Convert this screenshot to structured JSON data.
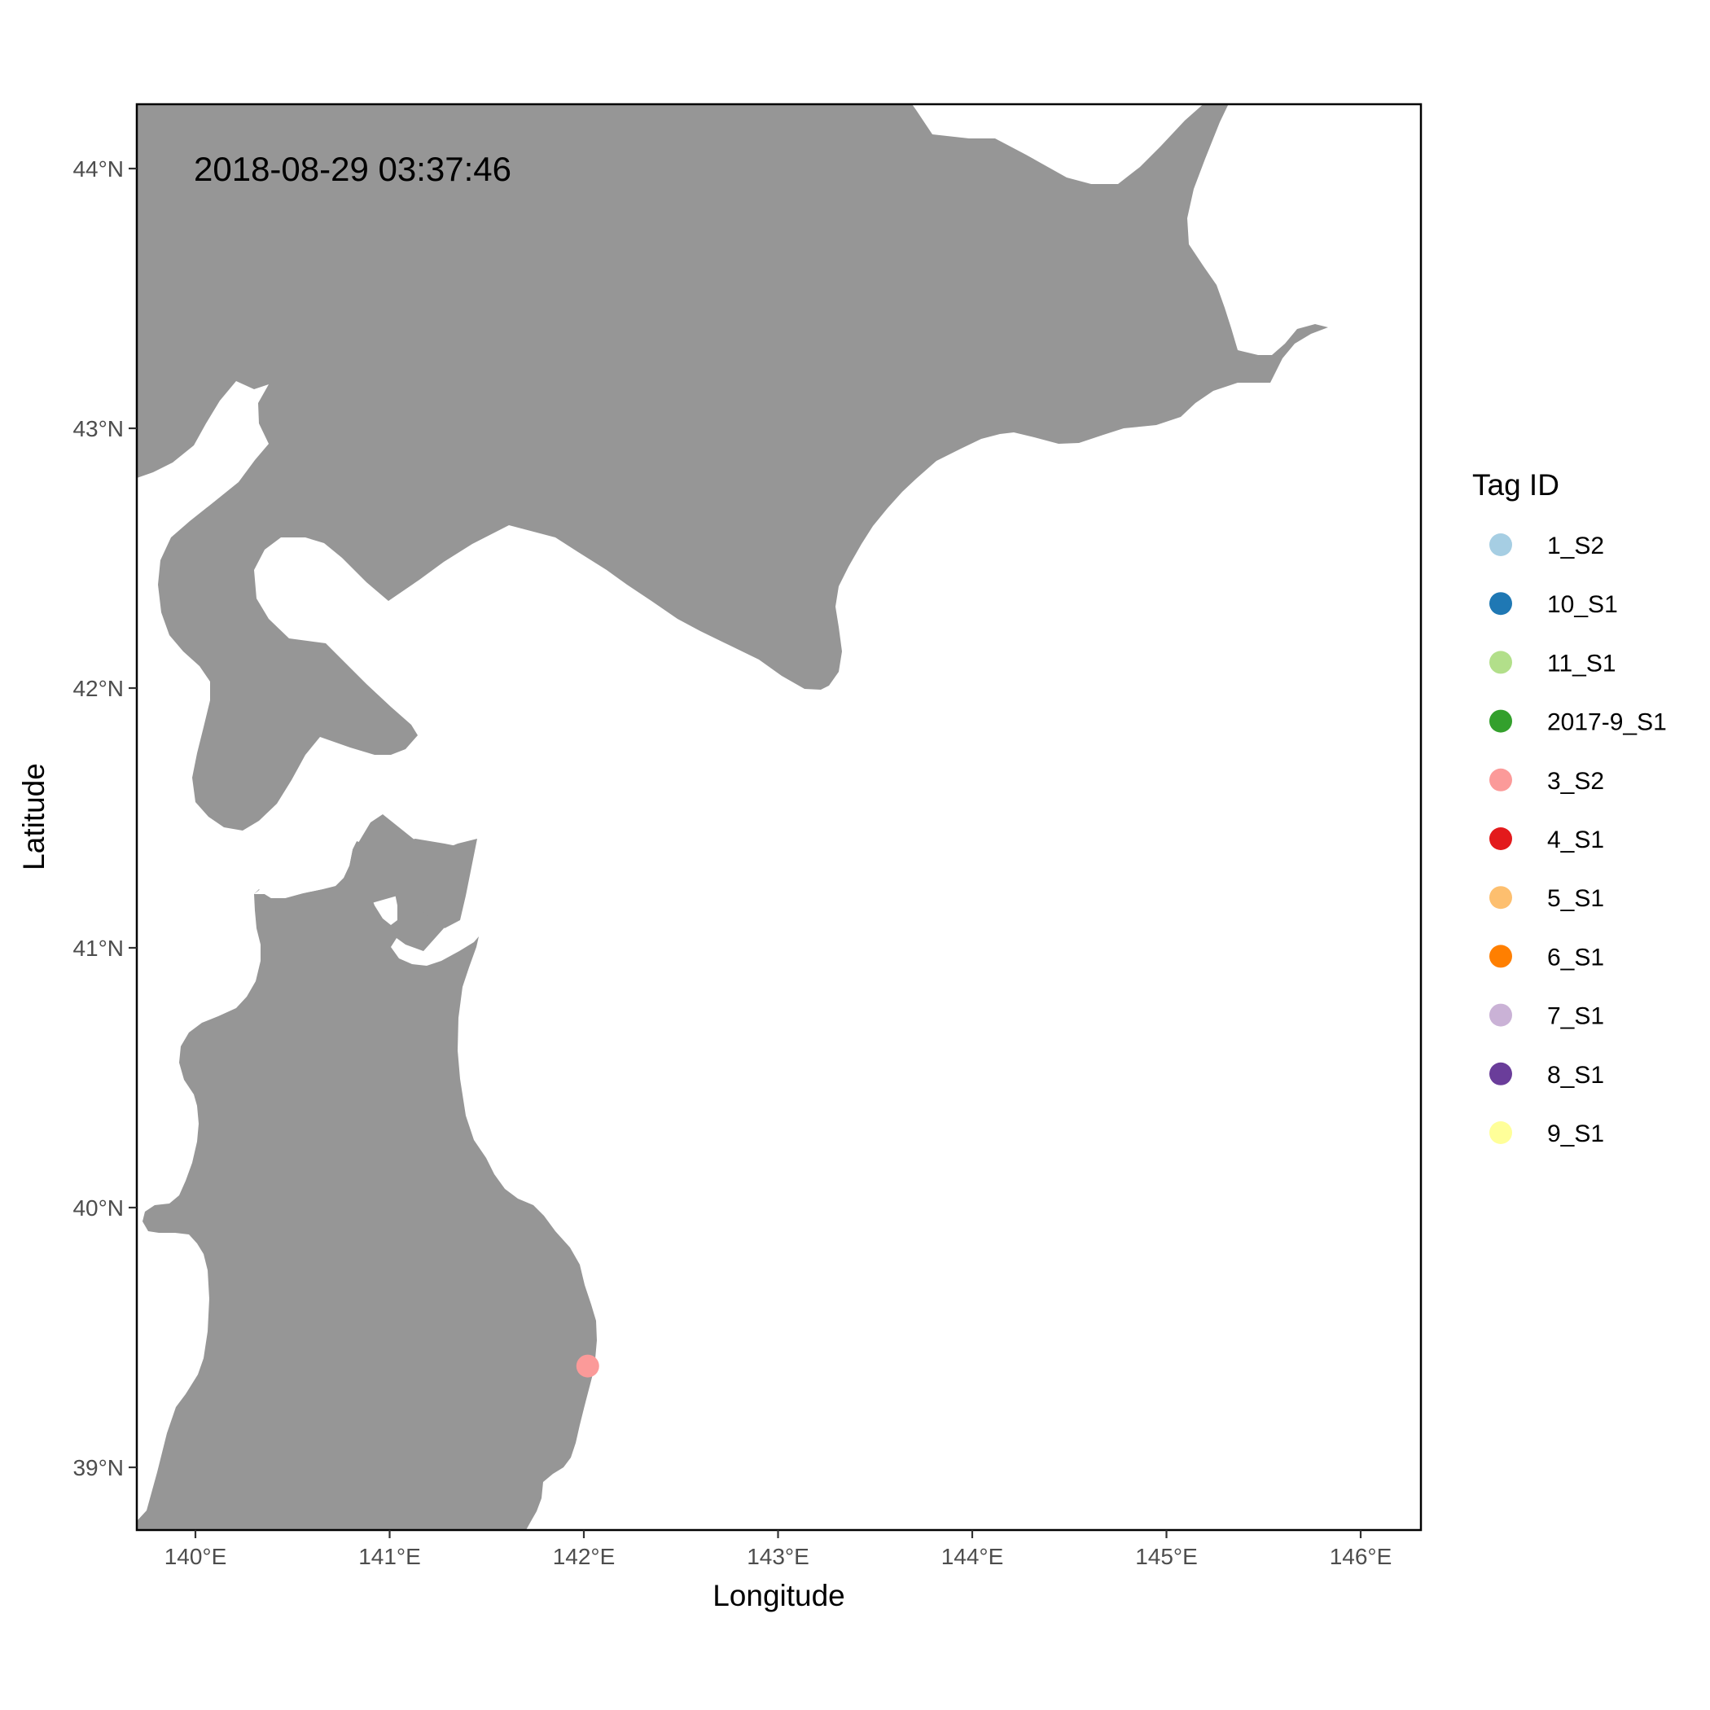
{
  "chart_data": {
    "type": "map",
    "timestamp": "2018-08-29 03:37:46",
    "xlabel": "Longitude",
    "ylabel": "Latitude",
    "xlim": [
      139.7,
      146.3
    ],
    "ylim": [
      38.76,
      44.24
    ],
    "x_ticks": [
      {
        "value": 140,
        "label": "140°E"
      },
      {
        "value": 141,
        "label": "141°E"
      },
      {
        "value": 142,
        "label": "142°E"
      },
      {
        "value": 143,
        "label": "143°E"
      },
      {
        "value": 144,
        "label": "144°E"
      },
      {
        "value": 145,
        "label": "145°E"
      },
      {
        "value": 146,
        "label": "146°E"
      }
    ],
    "y_ticks": [
      {
        "value": 39,
        "label": "39°N"
      },
      {
        "value": 40,
        "label": "40°N"
      },
      {
        "value": 41,
        "label": "41°N"
      },
      {
        "value": 42,
        "label": "42°N"
      },
      {
        "value": 43,
        "label": "43°N"
      },
      {
        "value": 44,
        "label": "44°N"
      }
    ],
    "land_color": "#969696",
    "legend": {
      "title": "Tag ID",
      "entries": [
        {
          "label": "1_S2",
          "color": "#a6cee3"
        },
        {
          "label": "10_S1",
          "color": "#1f78b4"
        },
        {
          "label": "11_S1",
          "color": "#b2df8a"
        },
        {
          "label": "2017-9_S1",
          "color": "#33a02c"
        },
        {
          "label": "3_S2",
          "color": "#fb9a99"
        },
        {
          "label": "4_S1",
          "color": "#e31a1c"
        },
        {
          "label": "5_S1",
          "color": "#fdbf6f"
        },
        {
          "label": "6_S1",
          "color": "#ff7f00"
        },
        {
          "label": "7_S1",
          "color": "#cab2d6"
        },
        {
          "label": "8_S1",
          "color": "#6a3d9a"
        },
        {
          "label": "9_S1",
          "color": "#ffff99"
        }
      ]
    },
    "points": [
      {
        "tag": "3_S2",
        "lon": 142.02,
        "lat": 39.39,
        "color": "#fb9a99"
      }
    ]
  }
}
